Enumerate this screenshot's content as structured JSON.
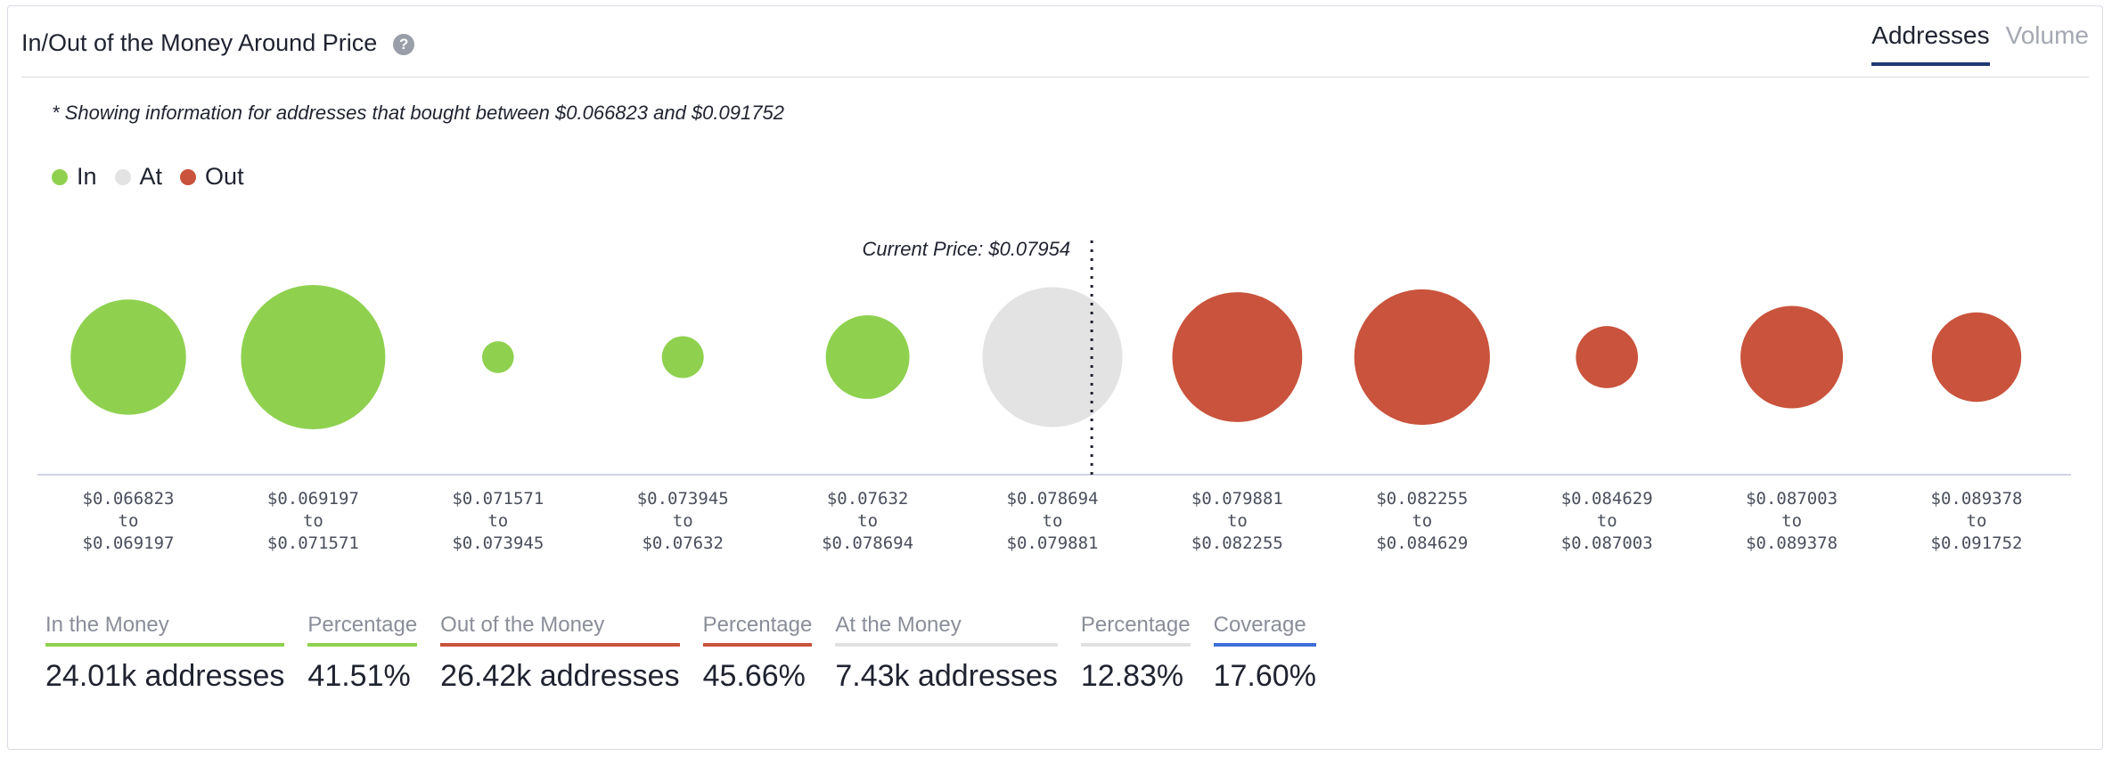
{
  "header": {
    "title": "In/Out of the Money Around Price",
    "help_icon": "question-circle-icon",
    "tabs": [
      {
        "label": "Addresses",
        "active": true
      },
      {
        "label": "Volume",
        "active": false
      }
    ]
  },
  "note": "* Showing information for addresses that bought between $0.066823 and $0.091752",
  "legend": [
    {
      "label": "In",
      "color": "#8fd14f"
    },
    {
      "label": "At",
      "color": "#e3e3e3"
    },
    {
      "label": "Out",
      "color": "#c9533c"
    }
  ],
  "colors": {
    "in": "#8fd14f",
    "at": "#e3e3e3",
    "out": "#c9533c",
    "coverage": "#3e6fd8",
    "at_line": "#e1e1e1"
  },
  "chart_data": {
    "type": "bubble",
    "current_price_label": "Current Price: $0.07954",
    "current_price": 0.07954,
    "bubbles": [
      {
        "from": "$0.066823",
        "to": "$0.069197",
        "status": "in",
        "relative_size": 0.8
      },
      {
        "from": "$0.069197",
        "to": "$0.071571",
        "status": "in",
        "relative_size": 1.0
      },
      {
        "from": "$0.071571",
        "to": "$0.073945",
        "status": "in",
        "relative_size": 0.22
      },
      {
        "from": "$0.073945",
        "to": "$0.07632",
        "status": "in",
        "relative_size": 0.29
      },
      {
        "from": "$0.07632",
        "to": "$0.078694",
        "status": "in",
        "relative_size": 0.58
      },
      {
        "from": "$0.078694",
        "to": "$0.079881",
        "status": "at",
        "relative_size": 0.97
      },
      {
        "from": "$0.079881",
        "to": "$0.082255",
        "status": "out",
        "relative_size": 0.9
      },
      {
        "from": "$0.082255",
        "to": "$0.084629",
        "status": "out",
        "relative_size": 0.94
      },
      {
        "from": "$0.084629",
        "to": "$0.087003",
        "status": "out",
        "relative_size": 0.43
      },
      {
        "from": "$0.087003",
        "to": "$0.089378",
        "status": "out",
        "relative_size": 0.71
      },
      {
        "from": "$0.089378",
        "to": "$0.091752",
        "status": "out",
        "relative_size": 0.62
      }
    ],
    "range_connector": "to"
  },
  "stats": [
    {
      "label": "In the Money",
      "value": "24.01k addresses",
      "color": "#8fd14f"
    },
    {
      "label": "Percentage",
      "value": "41.51%",
      "color": "#8fd14f"
    },
    {
      "label": "Out of the Money",
      "value": "26.42k addresses",
      "color": "#c9533c"
    },
    {
      "label": "Percentage",
      "value": "45.66%",
      "color": "#c9533c"
    },
    {
      "label": "At the Money",
      "value": "7.43k addresses",
      "color": "#e1e1e1"
    },
    {
      "label": "Percentage",
      "value": "12.83%",
      "color": "#e1e1e1"
    },
    {
      "label": "Coverage",
      "value": "17.60%",
      "color": "#3e6fd8"
    }
  ]
}
